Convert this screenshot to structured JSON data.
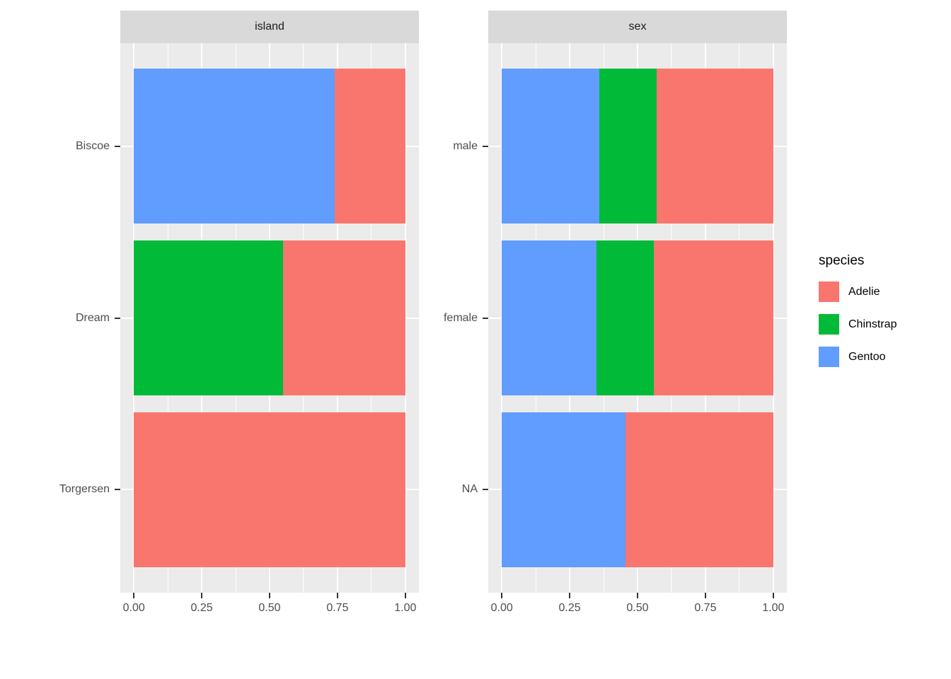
{
  "chart_data": {
    "type": "bar",
    "orientation": "horizontal",
    "stacking": "fill",
    "title": "",
    "xlabel": "",
    "ylabel": "",
    "x_range": [
      0,
      1
    ],
    "x_ticks": [
      "0.00",
      "0.25",
      "0.50",
      "0.75",
      "1.00"
    ],
    "x_tick_values": [
      0,
      0.25,
      0.5,
      0.75,
      1
    ],
    "x_minor_values": [
      0.125,
      0.375,
      0.625,
      0.875
    ],
    "grid": "on",
    "legend": {
      "title": "species",
      "position": "right",
      "entries": [
        {
          "label": "Adelie",
          "color": "#F8766D"
        },
        {
          "label": "Chinstrap",
          "color": "#00BA38"
        },
        {
          "label": "Gentoo",
          "color": "#619CFF"
        }
      ]
    },
    "colors": {
      "Adelie": "#F8766D",
      "Chinstrap": "#00BA38",
      "Gentoo": "#619CFF"
    },
    "panel_bg": "#EBEBEB",
    "strip_bg": "#D9D9D9",
    "grid_color": "#FFFFFF",
    "axis_text_color": "#4D4D4D",
    "facets": [
      {
        "title": "island",
        "categories": [
          "Biscoe",
          "Dream",
          "Torgersen"
        ],
        "bars": [
          {
            "category": "Biscoe",
            "segments": [
              {
                "species": "Gentoo",
                "value": 0.74
              },
              {
                "species": "Adelie",
                "value": 0.26
              }
            ]
          },
          {
            "category": "Dream",
            "segments": [
              {
                "species": "Chinstrap",
                "value": 0.55
              },
              {
                "species": "Adelie",
                "value": 0.45
              }
            ]
          },
          {
            "category": "Torgersen",
            "segments": [
              {
                "species": "Adelie",
                "value": 1.0
              }
            ]
          }
        ]
      },
      {
        "title": "sex",
        "categories": [
          "male",
          "female",
          "NA"
        ],
        "bars": [
          {
            "category": "male",
            "segments": [
              {
                "species": "Gentoo",
                "value": 0.36
              },
              {
                "species": "Chinstrap",
                "value": 0.21
              },
              {
                "species": "Adelie",
                "value": 0.43
              }
            ]
          },
          {
            "category": "female",
            "segments": [
              {
                "species": "Gentoo",
                "value": 0.35
              },
              {
                "species": "Chinstrap",
                "value": 0.21
              },
              {
                "species": "Adelie",
                "value": 0.44
              }
            ]
          },
          {
            "category": "NA",
            "segments": [
              {
                "species": "Gentoo",
                "value": 0.455
              },
              {
                "species": "Adelie",
                "value": 0.545
              }
            ]
          }
        ]
      }
    ]
  }
}
